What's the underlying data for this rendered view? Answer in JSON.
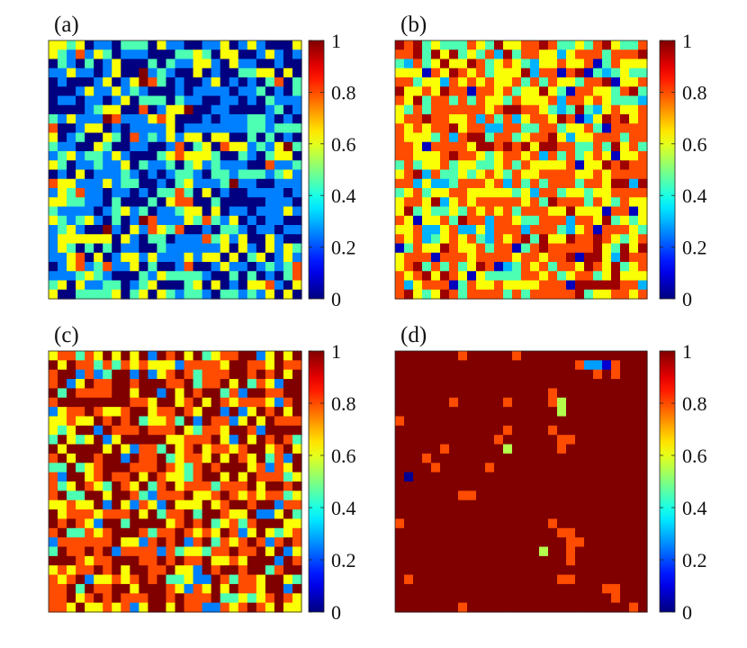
{
  "chart_data": [
    {
      "type": "heatmap",
      "panel_label": "(a)",
      "grid_size": [
        28,
        28
      ],
      "colormap": "jet",
      "value_levels": [
        0,
        0.25,
        0.45,
        0.62,
        0.8,
        1
      ],
      "level_weights": [
        0.28,
        0.3,
        0.2,
        0.16,
        0.05,
        0.01
      ],
      "clusters": [
        [
          6,
          18,
          0.7
        ],
        [
          18,
          24,
          0.8
        ],
        [
          5,
          3,
          0.6
        ],
        [
          12,
          10,
          0.5
        ]
      ],
      "colorbar": {
        "min": 0,
        "max": 1,
        "ticks": [
          0,
          0.2,
          0.4,
          0.6,
          0.8,
          1
        ],
        "tick_labels": [
          "0",
          "0.2",
          "0.4",
          "0.6",
          "0.8",
          "1"
        ]
      }
    },
    {
      "type": "heatmap",
      "panel_label": "(b)",
      "grid_size": [
        28,
        28
      ],
      "colormap": "jet",
      "value_levels": [
        0.06,
        0.3,
        0.45,
        0.62,
        0.8,
        0.97
      ],
      "level_weights": [
        0.04,
        0.06,
        0.18,
        0.28,
        0.34,
        0.1
      ],
      "clusters": [],
      "colorbar": {
        "min": 0,
        "max": 1,
        "ticks": [
          0,
          0.2,
          0.4,
          0.6,
          0.8,
          1
        ],
        "tick_labels": [
          "0",
          "0.2",
          "0.4",
          "0.6",
          "0.8",
          "1"
        ]
      }
    },
    {
      "type": "heatmap",
      "panel_label": "(c)",
      "grid_size": [
        28,
        28
      ],
      "colormap": "jet",
      "value_levels": [
        0.25,
        0.45,
        0.62,
        0.8,
        1
      ],
      "level_weights": [
        0.05,
        0.07,
        0.2,
        0.33,
        0.35
      ],
      "clusters": [],
      "colorbar": {
        "min": 0,
        "max": 1,
        "ticks": [
          0,
          0.2,
          0.4,
          0.6,
          0.8,
          1
        ],
        "tick_labels": [
          "0",
          "0.2",
          "0.4",
          "0.6",
          "0.8",
          "1"
        ]
      }
    },
    {
      "type": "heatmap",
      "panel_label": "(d)",
      "grid_size": [
        28,
        28
      ],
      "colormap": "jet",
      "base_value": 1,
      "cells": [
        {
          "row": 0,
          "col": 7,
          "value": 0.8
        },
        {
          "row": 0,
          "col": 13,
          "value": 0.8
        },
        {
          "row": 1,
          "col": 20,
          "value": 0.8
        },
        {
          "row": 1,
          "col": 21,
          "value": 0.28
        },
        {
          "row": 1,
          "col": 22,
          "value": 0.28
        },
        {
          "row": 1,
          "col": 23,
          "value": 0.08
        },
        {
          "row": 1,
          "col": 24,
          "value": 0.8
        },
        {
          "row": 2,
          "col": 22,
          "value": 0.8
        },
        {
          "row": 2,
          "col": 24,
          "value": 0.8
        },
        {
          "row": 4,
          "col": 17,
          "value": 0.8
        },
        {
          "row": 5,
          "col": 6,
          "value": 0.8
        },
        {
          "row": 5,
          "col": 12,
          "value": 0.8
        },
        {
          "row": 5,
          "col": 17,
          "value": 0.8
        },
        {
          "row": 5,
          "col": 18,
          "value": 0.55
        },
        {
          "row": 6,
          "col": 18,
          "value": 0.55
        },
        {
          "row": 7,
          "col": 0,
          "value": 0.8
        },
        {
          "row": 8,
          "col": 17,
          "value": 0.8
        },
        {
          "row": 8,
          "col": 12,
          "value": 0.8
        },
        {
          "row": 9,
          "col": 11,
          "value": 0.8
        },
        {
          "row": 9,
          "col": 18,
          "value": 0.8
        },
        {
          "row": 9,
          "col": 19,
          "value": 0.8
        },
        {
          "row": 10,
          "col": 5,
          "value": 0.8
        },
        {
          "row": 10,
          "col": 12,
          "value": 0.55
        },
        {
          "row": 10,
          "col": 18,
          "value": 0.8
        },
        {
          "row": 11,
          "col": 3,
          "value": 0.8
        },
        {
          "row": 12,
          "col": 4,
          "value": 0.8
        },
        {
          "row": 12,
          "col": 10,
          "value": 0.8
        },
        {
          "row": 13,
          "col": 1,
          "value": 0.02
        },
        {
          "row": 15,
          "col": 7,
          "value": 0.8
        },
        {
          "row": 15,
          "col": 8,
          "value": 0.8
        },
        {
          "row": 18,
          "col": 0,
          "value": 0.8
        },
        {
          "row": 18,
          "col": 17,
          "value": 0.8
        },
        {
          "row": 19,
          "col": 19,
          "value": 0.8
        },
        {
          "row": 19,
          "col": 18,
          "value": 0.8
        },
        {
          "row": 20,
          "col": 19,
          "value": 0.8
        },
        {
          "row": 20,
          "col": 20,
          "value": 0.8
        },
        {
          "row": 21,
          "col": 16,
          "value": 0.55
        },
        {
          "row": 21,
          "col": 19,
          "value": 0.8
        },
        {
          "row": 22,
          "col": 19,
          "value": 0.8
        },
        {
          "row": 24,
          "col": 1,
          "value": 0.8
        },
        {
          "row": 24,
          "col": 18,
          "value": 0.8
        },
        {
          "row": 24,
          "col": 19,
          "value": 0.8
        },
        {
          "row": 25,
          "col": 23,
          "value": 0.8
        },
        {
          "row": 25,
          "col": 24,
          "value": 0.8
        },
        {
          "row": 26,
          "col": 24,
          "value": 0.8
        },
        {
          "row": 27,
          "col": 7,
          "value": 0.8
        },
        {
          "row": 27,
          "col": 26,
          "value": 0.8
        }
      ],
      "colorbar": {
        "min": 0,
        "max": 1,
        "ticks": [
          0,
          0.2,
          0.4,
          0.6,
          0.8,
          1
        ],
        "tick_labels": [
          "0",
          "0.2",
          "0.4",
          "0.6",
          "0.8",
          "1"
        ]
      }
    }
  ]
}
